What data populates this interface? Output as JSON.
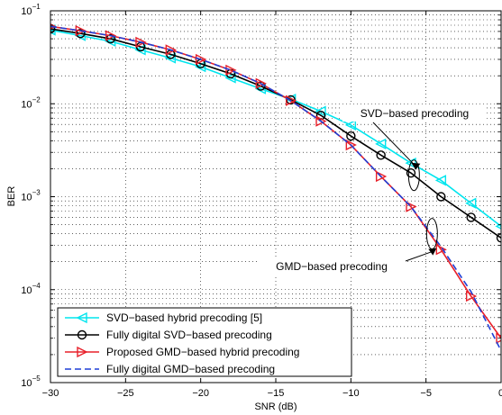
{
  "chart_data": {
    "type": "line",
    "xlabel": "SNR (dB)",
    "ylabel": "BER",
    "xlim": [
      -30,
      0
    ],
    "ylim": [
      1e-05,
      0.1
    ],
    "yscale": "log",
    "grid": true,
    "grid_style": "dotted",
    "legend_position": "bottom-left",
    "x_ticks": [
      -30,
      -25,
      -20,
      -15,
      -10,
      -5,
      0
    ],
    "x_tick_labels": [
      "−30",
      "−25",
      "−20",
      "−15",
      "−10",
      "−5",
      "0"
    ],
    "y_ticks": [
      {
        "value": 1e-05,
        "base": "10",
        "exp": "−5"
      },
      {
        "value": 0.0001,
        "base": "10",
        "exp": "−4"
      },
      {
        "value": 0.001,
        "base": "10",
        "exp": "−3"
      },
      {
        "value": 0.01,
        "base": "10",
        "exp": "−2"
      },
      {
        "value": 0.1,
        "base": "10",
        "exp": "−1"
      }
    ],
    "series": [
      {
        "name": "SVD−based hybrid precoding [5]",
        "color": "#00e5ee",
        "marker": "triangle-left",
        "dash": "solid",
        "x": [
          -30,
          -28,
          -26,
          -24,
          -22,
          -20,
          -18,
          -16,
          -14,
          -12,
          -10,
          -8,
          -6,
          -4,
          -2,
          0
        ],
        "y": [
          0.062,
          0.054,
          0.047,
          0.038,
          0.031,
          0.025,
          0.019,
          0.0145,
          0.0112,
          0.0083,
          0.0059,
          0.0037,
          0.0023,
          0.0015,
          0.00085,
          0.00048
        ]
      },
      {
        "name": "Fully digital SVD−based precoding",
        "color": "#000000",
        "marker": "circle",
        "dash": "solid",
        "x": [
          -30,
          -28,
          -26,
          -24,
          -22,
          -20,
          -18,
          -16,
          -14,
          -12,
          -10,
          -8,
          -6,
          -4,
          -2,
          0
        ],
        "y": [
          0.064,
          0.057,
          0.05,
          0.041,
          0.034,
          0.027,
          0.021,
          0.0155,
          0.011,
          0.0075,
          0.0045,
          0.0028,
          0.0018,
          0.001,
          0.0006,
          0.00036
        ]
      },
      {
        "name": "Proposed GMD−based hybrid precoding",
        "color": "#e8202a",
        "marker": "triangle-right",
        "dash": "solid",
        "x": [
          -30,
          -28,
          -26,
          -24,
          -22,
          -20,
          -18,
          -16,
          -14,
          -12,
          -10,
          -8,
          -6,
          -4,
          -2,
          0
        ],
        "y": [
          0.068,
          0.061,
          0.054,
          0.046,
          0.038,
          0.03,
          0.023,
          0.0165,
          0.0108,
          0.0065,
          0.0036,
          0.00165,
          0.00078,
          0.00027,
          8.5e-05,
          3e-05
        ]
      },
      {
        "name": "Fully digital GMD−based precoding",
        "color": "#1f3fd6",
        "marker": "none",
        "dash": "dashed",
        "x": [
          -30,
          -28,
          -26,
          -24,
          -22,
          -20,
          -18,
          -16,
          -14,
          -12,
          -10,
          -8,
          -6,
          -4,
          -2,
          0
        ],
        "y": [
          0.068,
          0.061,
          0.054,
          0.046,
          0.038,
          0.03,
          0.023,
          0.0165,
          0.0108,
          0.0065,
          0.0036,
          0.00165,
          0.00078,
          0.00029,
          9.5e-05,
          2.2e-05
        ]
      }
    ],
    "annotations": [
      {
        "text": "SVD−based precoding",
        "target_x": -5.8,
        "target_y": 0.0017
      },
      {
        "text": "GMD−based precoding",
        "target_x": -4.3,
        "target_y": 0.00028
      }
    ]
  }
}
